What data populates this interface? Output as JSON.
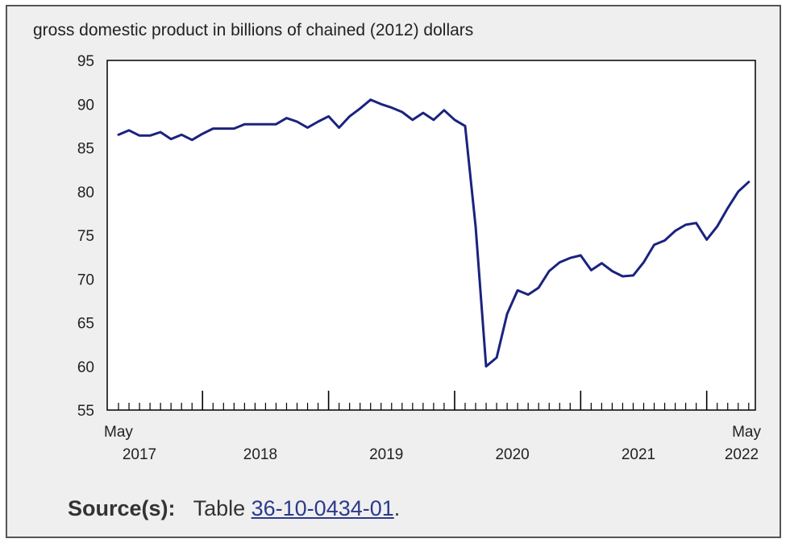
{
  "chart_data": {
    "type": "line",
    "title": "gross domestic product in billions of chained (2012) dollars",
    "xlabel": "",
    "ylabel": "",
    "ylim": [
      55,
      95
    ],
    "yticks": [
      55,
      60,
      65,
      70,
      75,
      80,
      85,
      90,
      95
    ],
    "grid": false,
    "x_start_label": "May",
    "x_end_label": "May",
    "year_labels": [
      "2017",
      "2018",
      "2019",
      "2020",
      "2021",
      "2022"
    ],
    "x": [
      "2017-05",
      "2017-06",
      "2017-07",
      "2017-08",
      "2017-09",
      "2017-10",
      "2017-11",
      "2017-12",
      "2018-01",
      "2018-02",
      "2018-03",
      "2018-04",
      "2018-05",
      "2018-06",
      "2018-07",
      "2018-08",
      "2018-09",
      "2018-10",
      "2018-11",
      "2018-12",
      "2019-01",
      "2019-02",
      "2019-03",
      "2019-04",
      "2019-05",
      "2019-06",
      "2019-07",
      "2019-08",
      "2019-09",
      "2019-10",
      "2019-11",
      "2019-12",
      "2020-01",
      "2020-02",
      "2020-03",
      "2020-04",
      "2020-05",
      "2020-06",
      "2020-07",
      "2020-08",
      "2020-09",
      "2020-10",
      "2020-11",
      "2020-12",
      "2021-01",
      "2021-02",
      "2021-03",
      "2021-04",
      "2021-05",
      "2021-06",
      "2021-07",
      "2021-08",
      "2021-09",
      "2021-10",
      "2021-11",
      "2021-12",
      "2022-01",
      "2022-02",
      "2022-03",
      "2022-04",
      "2022-05"
    ],
    "series": [
      {
        "color": "#1a237e",
        "values": [
          86.5,
          87.0,
          86.4,
          86.4,
          86.8,
          86.0,
          86.5,
          85.9,
          86.6,
          87.2,
          87.2,
          87.2,
          87.7,
          87.7,
          87.7,
          87.7,
          88.4,
          88.0,
          87.3,
          88.0,
          88.6,
          87.3,
          88.6,
          89.5,
          90.5,
          90.0,
          89.6,
          89.1,
          88.2,
          89.0,
          88.2,
          89.3,
          88.2,
          87.5,
          76.0,
          60.0,
          61.0,
          66.0,
          68.7,
          68.2,
          69.0,
          70.9,
          71.9,
          72.4,
          72.7,
          71.0,
          71.8,
          70.9,
          70.3,
          70.4,
          71.9,
          73.9,
          74.4,
          75.5,
          76.2,
          76.4,
          74.5,
          76.0,
          78.1,
          80.0,
          81.1
        ]
      }
    ]
  },
  "source": {
    "label": "Source(s):",
    "prefix": "Table",
    "table_id": "36-10-0434-01",
    "suffix": "."
  }
}
